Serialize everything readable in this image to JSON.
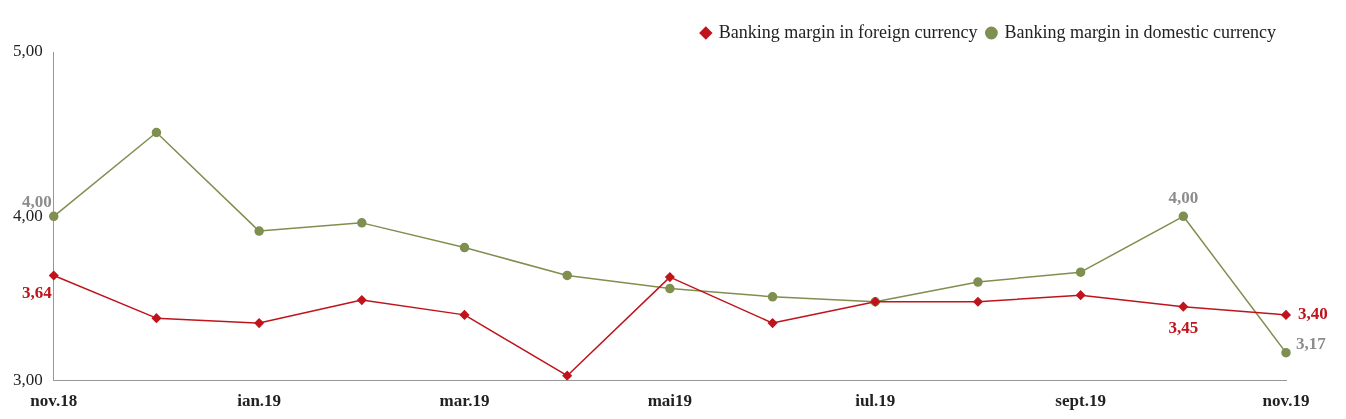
{
  "chart_data": {
    "type": "line",
    "categories": [
      "nov.18",
      null,
      "ian.19",
      null,
      "mar.19",
      null,
      "mai19",
      null,
      "iul.19",
      null,
      "sept.19",
      null,
      "nov.19"
    ],
    "series": [
      {
        "name": "Banking margin in foreign currency",
        "color": "#c0141c",
        "marker": "diamond",
        "values": [
          3.64,
          3.38,
          3.35,
          3.49,
          3.4,
          3.03,
          3.63,
          3.35,
          3.48,
          3.48,
          3.52,
          3.45,
          3.4
        ],
        "value_labels": [
          "3,64",
          null,
          null,
          null,
          null,
          null,
          null,
          null,
          null,
          null,
          null,
          "3,45",
          "3,40"
        ]
      },
      {
        "name": "Banking margin in domestic currency",
        "color": "#7f8f4f",
        "marker": "circle",
        "values": [
          4.0,
          4.51,
          3.91,
          3.96,
          3.81,
          3.64,
          3.56,
          3.51,
          3.48,
          3.6,
          3.66,
          4.0,
          3.17
        ],
        "value_labels": [
          "4,00",
          null,
          null,
          null,
          null,
          null,
          null,
          null,
          null,
          null,
          null,
          "4,00",
          "3,17"
        ]
      }
    ],
    "ylim": [
      3,
      5
    ],
    "yticks": [
      {
        "value": 3,
        "label": "3,00"
      },
      {
        "value": 4,
        "label": "4,00"
      },
      {
        "value": 5,
        "label": "5,00"
      }
    ],
    "grid": false,
    "legend": "top right",
    "line_style": "solid"
  }
}
